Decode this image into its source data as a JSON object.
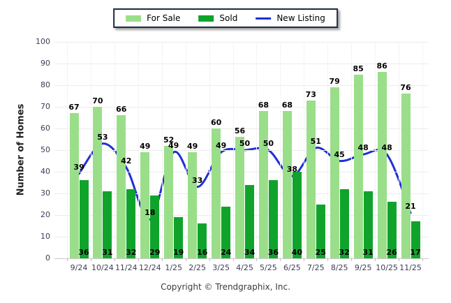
{
  "chart_data": {
    "type": "bar",
    "title": "",
    "categories": [
      "9/24",
      "10/24",
      "11/24",
      "12/24",
      "1/25",
      "2/25",
      "3/25",
      "4/25",
      "5/25",
      "6/25",
      "7/25",
      "8/25",
      "9/25",
      "10/25",
      "11/25"
    ],
    "series": [
      {
        "name": "For Sale",
        "type": "bar",
        "color": "#9ade8a",
        "values": [
          67,
          70,
          66,
          49,
          52,
          49,
          60,
          56,
          68,
          68,
          73,
          79,
          85,
          86,
          76
        ]
      },
      {
        "name": "Sold",
        "type": "bar",
        "color": "#10a32c",
        "values": [
          36,
          31,
          32,
          29,
          19,
          16,
          24,
          34,
          36,
          40,
          25,
          32,
          31,
          26,
          17
        ]
      },
      {
        "name": "New Listing",
        "type": "line",
        "color": "#1e30d4",
        "values": [
          39,
          53,
          42,
          18,
          49,
          33,
          49,
          50,
          50,
          38,
          51,
          45,
          48,
          48,
          21
        ]
      }
    ],
    "xlabel": "",
    "ylabel": "Number of Homes",
    "ylim": [
      0,
      100
    ],
    "ytick_step": 10,
    "grid": true,
    "legend_position": "top"
  },
  "footer": {
    "copyright": "Copyright © Trendgraphix, Inc."
  }
}
